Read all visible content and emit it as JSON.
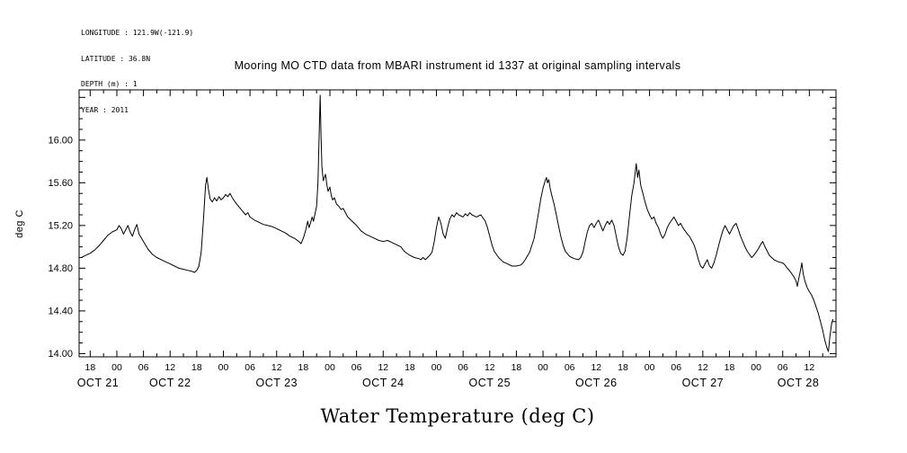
{
  "header": {
    "longitude": "LONGITUDE : 121.9W(-121.9)",
    "latitude": "LATITUDE : 36.8N",
    "depth": "DEPTH (m) : 1",
    "year": "YEAR : 2011"
  },
  "title": "Mooring MO CTD data from MBARI instrument id 1337 at original sampling intervals",
  "y_axis_label": "deg C",
  "x_axis_caption": "Water Temperature (deg C)",
  "chart_data": {
    "type": "line",
    "title": "Mooring MO CTD data from MBARI instrument id 1337 at original sampling intervals",
    "ylabel": "deg C",
    "xlabel": "Water Temperature (deg C)",
    "grid": false,
    "legend": "none",
    "line_color": "#000000",
    "background": "#ffffff",
    "x_unit": "hours since OCT 21 2011 00:00",
    "x_range": [
      15.5,
      186
    ],
    "y_range": [
      13.97,
      16.47
    ],
    "y_tick_values": [
      14.0,
      14.4,
      14.8,
      15.2,
      15.6,
      16.0
    ],
    "y_tick_labels": [
      "14.00",
      "14.40",
      "14.80",
      "15.20",
      "15.60",
      "16.00"
    ],
    "y_extra_major_ticks": [
      16.4
    ],
    "y_minor_step": 0.1,
    "x_tick_hours": [
      18,
      24,
      30,
      36,
      42,
      48,
      54,
      60,
      66,
      72,
      78,
      84,
      90,
      96,
      102,
      108,
      114,
      120,
      126,
      132,
      138,
      144,
      150,
      156,
      162,
      168,
      174,
      180
    ],
    "x_tick_labels": [
      "18",
      "00",
      "06",
      "12",
      "18",
      "00",
      "06",
      "12",
      "18",
      "00",
      "06",
      "12",
      "18",
      "00",
      "06",
      "12",
      "18",
      "00",
      "06",
      "12",
      "18",
      "00",
      "06",
      "12",
      "18",
      "00",
      "06",
      "12"
    ],
    "x_minor_step": 3,
    "date_labels": [
      {
        "label": "OCT 21",
        "t": 19.75
      },
      {
        "label": "OCT 22",
        "t": 36
      },
      {
        "label": "OCT 23",
        "t": 60
      },
      {
        "label": "OCT 24",
        "t": 84
      },
      {
        "label": "OCT 25",
        "t": 108
      },
      {
        "label": "OCT 26",
        "t": 132
      },
      {
        "label": "OCT 27",
        "t": 156
      },
      {
        "label": "OCT 28",
        "t": 177.5
      }
    ],
    "x_hours": [
      15.5,
      16,
      17,
      18,
      19,
      20,
      21,
      22,
      23,
      24,
      24.5,
      25,
      25.5,
      26,
      26.5,
      27,
      27.5,
      28,
      28.5,
      29,
      30,
      31,
      32,
      33,
      34,
      35,
      36,
      37,
      38,
      39,
      40,
      41,
      41.5,
      42,
      42.5,
      43,
      43.5,
      44,
      44.3,
      44.6,
      45,
      45.5,
      46,
      46.5,
      47,
      47.5,
      48,
      48.5,
      49,
      49.5,
      50,
      50.5,
      51,
      52,
      53,
      53.5,
      54,
      55,
      56,
      57,
      58,
      59,
      60,
      61,
      62,
      63,
      64,
      65,
      65.5,
      66,
      66.5,
      67,
      67.3,
      67.6,
      68,
      68.3,
      68.6,
      69,
      69.3,
      69.6,
      69.8,
      70,
      70.2,
      70.5,
      71,
      71.3,
      71.6,
      72,
      72.3,
      72.6,
      73,
      73.5,
      74,
      74.5,
      75,
      75.5,
      76,
      77,
      78,
      79,
      80,
      81,
      82,
      83,
      84,
      85,
      86,
      87,
      88,
      88.5,
      89,
      90,
      91,
      92,
      92.5,
      93,
      93.5,
      94,
      94.5,
      95,
      95.5,
      96,
      96.5,
      97,
      97.5,
      98,
      98.5,
      99,
      99.5,
      100,
      100.5,
      101,
      102,
      102.5,
      103,
      103.5,
      104,
      105,
      106,
      106.5,
      107,
      107.5,
      108,
      108.5,
      109,
      110,
      111,
      112,
      113,
      114,
      115,
      115.5,
      116,
      117,
      118,
      118.5,
      119,
      119.5,
      120,
      120.5,
      120.8,
      121,
      121.3,
      121.6,
      122,
      122.5,
      123,
      123.5,
      124,
      124.5,
      125,
      126,
      127,
      128,
      128.5,
      129,
      129.5,
      130,
      130.5,
      131,
      131.5,
      132,
      132.5,
      133,
      133.5,
      134,
      134.5,
      135,
      135.5,
      136,
      136.5,
      137,
      137.5,
      138,
      138.5,
      139,
      139.5,
      140,
      140.5,
      141,
      141.3,
      141.6,
      142,
      142.5,
      143,
      143.5,
      144,
      144.5,
      145,
      145.5,
      146,
      146.5,
      147,
      147.5,
      148,
      148.5,
      149,
      149.5,
      150,
      150.5,
      151,
      151.5,
      152,
      152.5,
      153,
      153.5,
      154,
      154.5,
      155,
      155.5,
      156,
      156.5,
      157,
      157.5,
      158,
      158.5,
      159,
      159.5,
      160,
      160.5,
      161,
      161.5,
      162,
      162.5,
      163,
      163.5,
      164,
      164.5,
      165,
      165.5,
      166,
      166.5,
      167,
      167.5,
      168,
      168.5,
      169,
      169.5,
      170,
      170.5,
      171,
      171.5,
      172,
      173,
      174,
      174.5,
      175,
      175.5,
      176,
      176.5,
      177,
      177.3,
      177.6,
      178,
      178.3,
      178.6,
      179,
      179.5,
      180,
      180.5,
      181,
      181.5,
      182,
      182.5,
      183,
      183.5,
      184,
      184.3,
      184.6,
      185,
      185.3
    ],
    "temperature_deg_c": [
      14.9,
      14.9,
      14.92,
      14.94,
      14.97,
      15.01,
      15.06,
      15.11,
      15.14,
      15.16,
      15.2,
      15.17,
      15.12,
      15.16,
      15.2,
      15.14,
      15.1,
      15.16,
      15.21,
      15.12,
      15.05,
      14.98,
      14.93,
      14.9,
      14.88,
      14.86,
      14.84,
      14.82,
      14.8,
      14.79,
      14.78,
      14.77,
      14.76,
      14.78,
      14.82,
      14.95,
      15.25,
      15.58,
      15.65,
      15.55,
      15.45,
      15.42,
      15.46,
      15.43,
      15.47,
      15.44,
      15.46,
      15.49,
      15.47,
      15.5,
      15.46,
      15.43,
      15.4,
      15.35,
      15.3,
      15.32,
      15.28,
      15.25,
      15.23,
      15.21,
      15.2,
      15.19,
      15.17,
      15.15,
      15.13,
      15.1,
      15.08,
      15.05,
      15.03,
      15.08,
      15.15,
      15.24,
      15.18,
      15.22,
      15.28,
      15.24,
      15.3,
      15.38,
      15.6,
      16.1,
      16.42,
      16.05,
      15.75,
      15.62,
      15.68,
      15.58,
      15.52,
      15.56,
      15.48,
      15.44,
      15.46,
      15.4,
      15.38,
      15.35,
      15.36,
      15.32,
      15.28,
      15.24,
      15.2,
      15.15,
      15.12,
      15.1,
      15.08,
      15.06,
      15.05,
      15.06,
      15.04,
      15.02,
      15.0,
      14.97,
      14.95,
      14.92,
      14.9,
      14.89,
      14.88,
      14.9,
      14.88,
      14.9,
      14.92,
      14.95,
      15.05,
      15.18,
      15.28,
      15.22,
      15.12,
      15.08,
      15.18,
      15.26,
      15.3,
      15.28,
      15.32,
      15.3,
      15.28,
      15.31,
      15.29,
      15.32,
      15.3,
      15.28,
      15.3,
      15.27,
      15.24,
      15.18,
      15.1,
      15.02,
      14.96,
      14.9,
      14.86,
      14.84,
      14.82,
      14.82,
      14.83,
      14.85,
      14.88,
      14.95,
      15.08,
      15.2,
      15.32,
      15.45,
      15.55,
      15.62,
      15.65,
      15.6,
      15.63,
      15.55,
      15.48,
      15.4,
      15.3,
      15.2,
      15.1,
      15.02,
      14.96,
      14.91,
      14.89,
      14.88,
      14.9,
      14.95,
      15.05,
      15.14,
      15.2,
      15.22,
      15.18,
      15.22,
      15.25,
      15.2,
      15.15,
      15.2,
      15.24,
      15.21,
      15.25,
      15.2,
      15.1,
      15.0,
      14.94,
      14.92,
      14.96,
      15.1,
      15.3,
      15.48,
      15.6,
      15.78,
      15.65,
      15.72,
      15.58,
      15.5,
      15.42,
      15.35,
      15.3,
      15.26,
      15.28,
      15.22,
      15.18,
      15.12,
      15.08,
      15.12,
      15.18,
      15.22,
      15.25,
      15.28,
      15.24,
      15.2,
      15.22,
      15.18,
      15.15,
      15.12,
      15.1,
      15.06,
      15.02,
      14.96,
      14.88,
      14.82,
      14.8,
      14.84,
      14.88,
      14.82,
      14.8,
      14.85,
      14.92,
      15.0,
      15.08,
      15.15,
      15.2,
      15.16,
      15.12,
      15.16,
      15.2,
      15.22,
      15.16,
      15.1,
      15.05,
      15.0,
      14.96,
      14.93,
      14.9,
      14.92,
      14.95,
      14.98,
      15.02,
      15.05,
      15.0,
      14.96,
      14.92,
      14.9,
      14.88,
      14.86,
      14.85,
      14.83,
      14.8,
      14.78,
      14.75,
      14.72,
      14.68,
      14.63,
      14.7,
      14.78,
      14.85,
      14.75,
      14.68,
      14.62,
      14.58,
      14.55,
      14.5,
      14.44,
      14.38,
      14.3,
      14.22,
      14.12,
      14.05,
      14.02,
      14.15,
      14.28,
      14.32
    ]
  }
}
